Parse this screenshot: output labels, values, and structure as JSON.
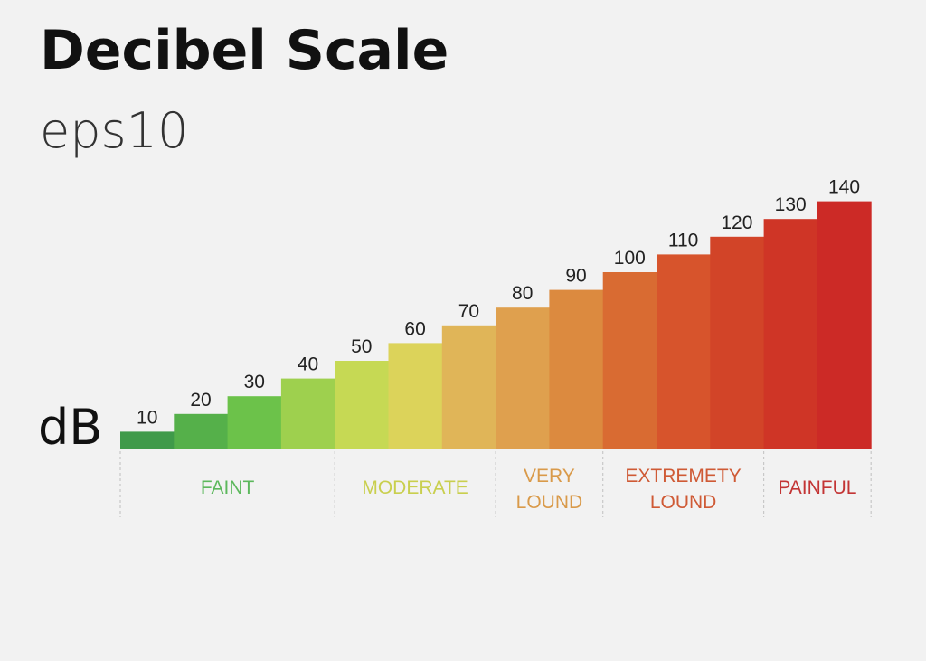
{
  "header": {
    "title": "Decibel Scale",
    "subtitle": "eps10",
    "unit_label": "dB"
  },
  "chart_data": {
    "type": "bar",
    "title": "Decibel Scale",
    "subtitle": "eps10",
    "ylabel": "dB",
    "ylim": [
      0,
      140
    ],
    "categories": [
      "10",
      "20",
      "30",
      "40",
      "50",
      "60",
      "70",
      "80",
      "90",
      "100",
      "110",
      "120",
      "130",
      "140"
    ],
    "values": [
      10,
      20,
      30,
      40,
      50,
      60,
      70,
      80,
      90,
      100,
      110,
      120,
      130,
      140
    ],
    "bar_colors": [
      "#3f9a4a",
      "#55b04a",
      "#6cc24a",
      "#9ed04e",
      "#c6d954",
      "#dcd35a",
      "#e0b558",
      "#dfa04e",
      "#dc8a3f",
      "#d96b32",
      "#d7542c",
      "#d24428",
      "#cf3526",
      "#cc2a26"
    ],
    "groups": [
      {
        "label": [
          "FAINT"
        ],
        "from": 0,
        "to": 3,
        "color": "#5cb85c"
      },
      {
        "label": [
          "MODERATE"
        ],
        "from": 4,
        "to": 6,
        "color": "#c9cf4e"
      },
      {
        "label": [
          "VERY",
          "LOUND"
        ],
        "from": 7,
        "to": 8,
        "color": "#d99a4a"
      },
      {
        "label": [
          "EXTREMETY",
          "LOUND"
        ],
        "from": 9,
        "to": 11,
        "color": "#cf5a35"
      },
      {
        "label": [
          "PAINFUL"
        ],
        "from": 12,
        "to": 13,
        "color": "#c33535"
      }
    ],
    "grid": false,
    "legend": "none"
  }
}
